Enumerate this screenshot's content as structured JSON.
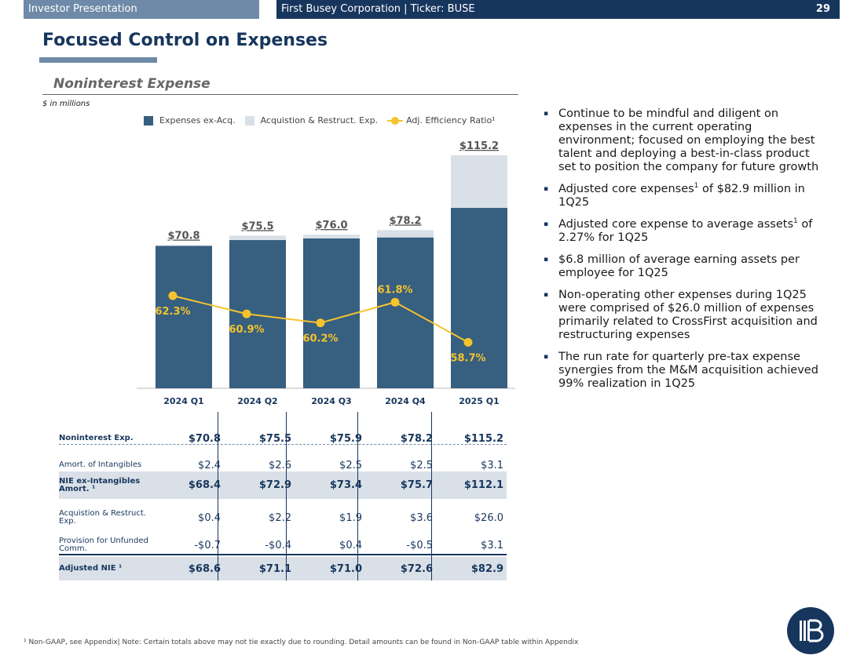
{
  "header": {
    "left": "Investor Presentation",
    "right": "First Busey Corporation  |  Ticker: BUSE",
    "page": "29"
  },
  "title": "Focused Control on Expenses",
  "section": {
    "title": "Noninterest Expense",
    "units": "$ in millions"
  },
  "legend": {
    "series1": "Expenses ex-Acq.",
    "series2": "Acquistion & Restruct. Exp.",
    "series3": "Adj. Efficiency Ratio¹"
  },
  "chart_data": {
    "type": "bar",
    "categories": [
      "2024 Q1",
      "2024 Q2",
      "2024 Q3",
      "2024 Q4",
      "2025 Q1"
    ],
    "series": [
      {
        "name": "Expenses ex-Acq.",
        "values": [
          70.4,
          73.3,
          74.1,
          74.6,
          89.2
        ]
      },
      {
        "name": "Acquistion & Restruct. Exp.",
        "values": [
          0.4,
          2.2,
          1.9,
          3.6,
          26.0
        ]
      }
    ],
    "totals": [
      "$70.8",
      "$75.5",
      "$76.0",
      "$78.2",
      "$115.2"
    ],
    "line": {
      "name": "Adj. Efficiency Ratio¹",
      "values": [
        62.3,
        60.9,
        60.2,
        61.8,
        58.7
      ],
      "labels": [
        "62.3%",
        "60.9%",
        "60.2%",
        "61.8%",
        "58.7%"
      ]
    },
    "ylim": [
      0,
      125
    ],
    "colors": {
      "bar": "#365f80",
      "stack": "#dae0e8",
      "line": "#f5c32c"
    }
  },
  "table": {
    "rows": [
      {
        "label": "Noninterest Exp.",
        "values": [
          "$70.8",
          "$75.5",
          "$75.9",
          "$78.2",
          "$115.2"
        ]
      },
      {
        "label": "Amort. of Intangibles",
        "values": [
          "$2.4",
          "$2.6",
          "$2.5",
          "$2.5",
          "$3.1"
        ]
      },
      {
        "label": "NIE ex-Intangibles Amort. ¹",
        "values": [
          "$68.4",
          "$72.9",
          "$73.4",
          "$75.7",
          "$112.1"
        ]
      },
      {
        "label": "Acquistion & Restruct. Exp.",
        "values": [
          "$0.4",
          "$2.2",
          "$1.9",
          "$3.6",
          "$26.0"
        ]
      },
      {
        "label": "Provision for Unfunded Comm.",
        "values": [
          "-$0.7",
          "-$0.4",
          "$0.4",
          "-$0.5",
          "$3.1"
        ]
      },
      {
        "label": "Adjusted NIE ¹",
        "values": [
          "$68.6",
          "$71.1",
          "$71.0",
          "$72.6",
          "$82.9"
        ]
      }
    ]
  },
  "bullets": [
    {
      "text": "Continue to be mindful and diligent on expenses in the current operating environment; focused on employing the best talent and deploying a best-in-class product set to position the company for future growth"
    },
    {
      "pre": "Adjusted core expenses",
      "sup": "1",
      "post": " of $82.9 million in 1Q25"
    },
    {
      "pre": "Adjusted core expense to average assets",
      "sup": "1",
      "post": " of 2.27% for 1Q25"
    },
    {
      "text": "$6.8 million of average earning assets per employee for 1Q25"
    },
    {
      "text": "Non-operating other expenses during 1Q25 were comprised of $26.0 million of expenses primarily related to CrossFirst acquisition and restructuring expenses"
    },
    {
      "text": "The run rate for quarterly pre-tax expense synergies from the M&M acquisition achieved 99% realization in 1Q25"
    }
  ],
  "footnote": "¹ Non-GAAP, see Appendix| Note: Certain totals above may not tie exactly due to rounding. Detail amounts can be found in Non-GAAP table within Appendix"
}
